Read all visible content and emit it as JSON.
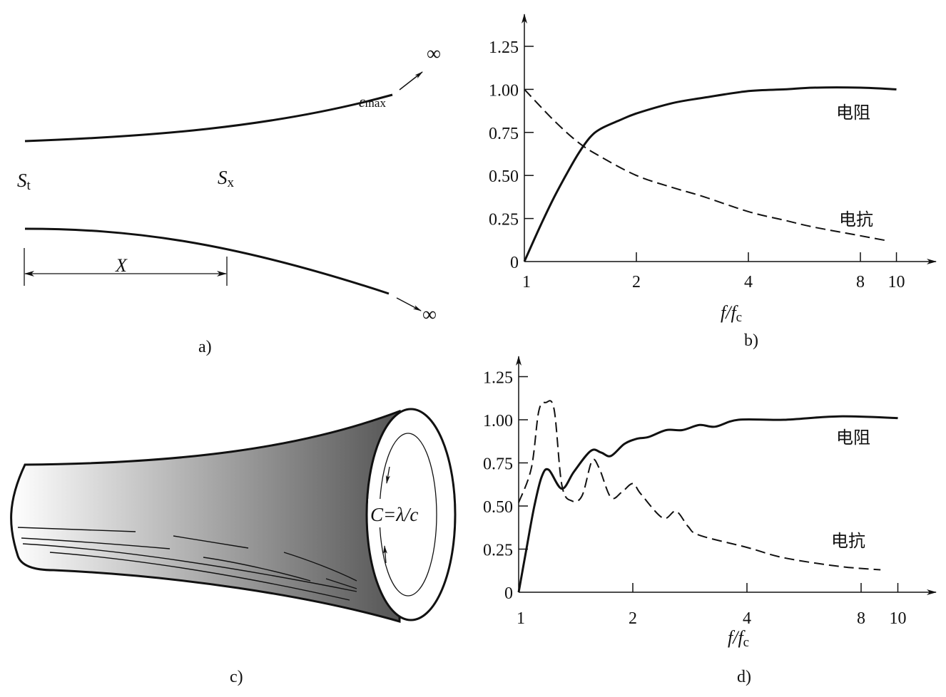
{
  "panel_a": {
    "caption": "a)",
    "s_t": {
      "main": "S",
      "sub": "t"
    },
    "s_x": {
      "main": "S",
      "sub": "x"
    },
    "epsilon": {
      "main": "ε",
      "sub": "max"
    },
    "infinity_top": "∞",
    "infinity_bottom": "∞",
    "dimension_label": "X"
  },
  "panel_c": {
    "caption": "c)",
    "formula": "C=λ/c",
    "shading_colors": [
      "#ffffff",
      "#555555"
    ]
  },
  "chart_data": [
    {
      "panel": "b",
      "caption": "b)",
      "type": "line",
      "xlabel": {
        "main": "f/f",
        "sub": "c"
      },
      "x_scale": "log",
      "xlim": [
        1,
        10
      ],
      "x_ticks": [
        1,
        2,
        4,
        8,
        10
      ],
      "x_tick_labels": [
        "1",
        "2",
        "4",
        "8",
        "10"
      ],
      "ylim": [
        0,
        1.25
      ],
      "y_ticks": [
        0,
        0.25,
        0.5,
        0.75,
        1.0,
        1.25
      ],
      "y_tick_labels": [
        "0",
        "0.25",
        "0.50",
        "0.75",
        "1.00",
        "1.25"
      ],
      "grid": false,
      "series": [
        {
          "name": "电阻",
          "style": "solid",
          "x": [
            1,
            1.1,
            1.2,
            1.3,
            1.4,
            1.5,
            1.6,
            1.8,
            2,
            2.5,
            3,
            4,
            5,
            6,
            8,
            10
          ],
          "y": [
            0,
            0.2,
            0.37,
            0.51,
            0.63,
            0.72,
            0.77,
            0.82,
            0.86,
            0.92,
            0.95,
            0.99,
            1.0,
            1.01,
            1.01,
            1.0
          ]
        },
        {
          "name": "电抗",
          "style": "dashed",
          "x": [
            1,
            1.2,
            1.4,
            1.6,
            2,
            2.5,
            3,
            4,
            5,
            6,
            8,
            9.5
          ],
          "y": [
            1.0,
            0.82,
            0.69,
            0.61,
            0.5,
            0.43,
            0.38,
            0.29,
            0.24,
            0.2,
            0.15,
            0.12
          ]
        }
      ]
    },
    {
      "panel": "d",
      "caption": "d)",
      "type": "line",
      "xlabel": {
        "main": "f/f",
        "sub": "c"
      },
      "x_scale": "log",
      "xlim": [
        1,
        10
      ],
      "x_ticks": [
        1,
        2,
        4,
        8,
        10
      ],
      "x_tick_labels": [
        "1",
        "2",
        "4",
        "8",
        "10"
      ],
      "ylim": [
        0,
        1.25
      ],
      "y_ticks": [
        0,
        0.25,
        0.5,
        0.75,
        1.0,
        1.25
      ],
      "y_tick_labels": [
        "0",
        "0.25",
        "0.50",
        "0.75",
        "1.00",
        "1.25"
      ],
      "grid": false,
      "series": [
        {
          "name": "电阻",
          "style": "solid",
          "x": [
            1,
            1.05,
            1.1,
            1.15,
            1.2,
            1.3,
            1.4,
            1.55,
            1.65,
            1.75,
            1.9,
            2.05,
            2.2,
            2.45,
            2.7,
            3.0,
            3.3,
            3.8,
            5,
            7,
            10
          ],
          "y": [
            0,
            0.26,
            0.5,
            0.67,
            0.71,
            0.6,
            0.7,
            0.82,
            0.81,
            0.79,
            0.86,
            0.89,
            0.9,
            0.94,
            0.94,
            0.97,
            0.96,
            1.0,
            1.0,
            1.02,
            1.01
          ]
        },
        {
          "name": "电抗",
          "style": "dashed",
          "x": [
            1,
            1.08,
            1.13,
            1.18,
            1.24,
            1.3,
            1.38,
            1.47,
            1.56,
            1.63,
            1.75,
            1.87,
            2.0,
            2.1,
            2.4,
            2.6,
            2.8,
            3.0,
            4,
            5,
            7,
            9
          ],
          "y": [
            0.52,
            0.72,
            1.05,
            1.1,
            1.06,
            0.62,
            0.53,
            0.56,
            0.76,
            0.72,
            0.55,
            0.58,
            0.63,
            0.57,
            0.43,
            0.47,
            0.38,
            0.33,
            0.26,
            0.2,
            0.15,
            0.13
          ]
        }
      ]
    }
  ]
}
